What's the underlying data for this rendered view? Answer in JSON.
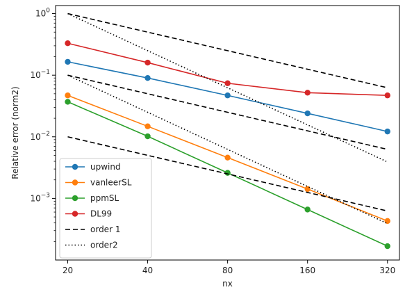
{
  "chart_data": {
    "type": "line",
    "xlabel": "nx",
    "ylabel": "Relative error (norm2)",
    "xscale": "log2",
    "yscale": "log10",
    "xlim": [
      18,
      355
    ],
    "ylim": [
      0.0001,
      1.35
    ],
    "grid": false,
    "legend_position": "lower-left",
    "x": [
      20,
      40,
      80,
      160,
      320
    ],
    "x_tick_labels": [
      "20",
      "40",
      "80",
      "160",
      "320"
    ],
    "y_ticks": [
      0.001,
      0.01,
      0.1,
      1
    ],
    "y_tick_labels": [
      {
        "base": "10",
        "exp": "−3"
      },
      {
        "base": "10",
        "exp": "−2"
      },
      {
        "base": "10",
        "exp": "−1"
      },
      {
        "base": "10",
        "exp": "0"
      }
    ],
    "series": [
      {
        "name": "upwind",
        "color": "#1f77b4",
        "style": "solid",
        "marker": "circle",
        "values": [
          0.165,
          0.09,
          0.047,
          0.024,
          0.0122
        ]
      },
      {
        "name": "vanleerSL",
        "color": "#ff7f0e",
        "style": "solid",
        "marker": "circle",
        "values": [
          0.047,
          0.0148,
          0.0046,
          0.00142,
          0.00043
        ]
      },
      {
        "name": "ppmSL",
        "color": "#2ca02c",
        "style": "solid",
        "marker": "circle",
        "values": [
          0.037,
          0.0102,
          0.0026,
          0.00066,
          0.000168
        ]
      },
      {
        "name": "DL99",
        "color": "#d62728",
        "style": "solid",
        "marker": "circle",
        "values": [
          0.33,
          0.16,
          0.074,
          0.052,
          0.047
        ]
      },
      {
        "name": "order 1",
        "color": "#000000",
        "style": "dashed",
        "marker": "none",
        "legend": true,
        "values": [
          1.0,
          0.5,
          0.25,
          0.125,
          0.0625
        ]
      },
      {
        "name": "",
        "color": "#000000",
        "style": "dashed",
        "marker": "none",
        "legend": false,
        "values": [
          0.1,
          0.05,
          0.025,
          0.0125,
          0.00625
        ]
      },
      {
        "name": "",
        "color": "#000000",
        "style": "dashed",
        "marker": "none",
        "legend": false,
        "values": [
          0.01,
          0.005,
          0.0025,
          0.00125,
          0.000625
        ]
      },
      {
        "name": "order2",
        "color": "#000000",
        "style": "dotted",
        "marker": "none",
        "legend": true,
        "values": [
          1.0,
          0.25,
          0.0625,
          0.015625,
          0.00390625
        ]
      },
      {
        "name": "",
        "color": "#000000",
        "style": "dotted",
        "marker": "none",
        "legend": false,
        "values": [
          0.1,
          0.025,
          0.00625,
          0.0015625,
          0.000390625
        ]
      }
    ]
  }
}
